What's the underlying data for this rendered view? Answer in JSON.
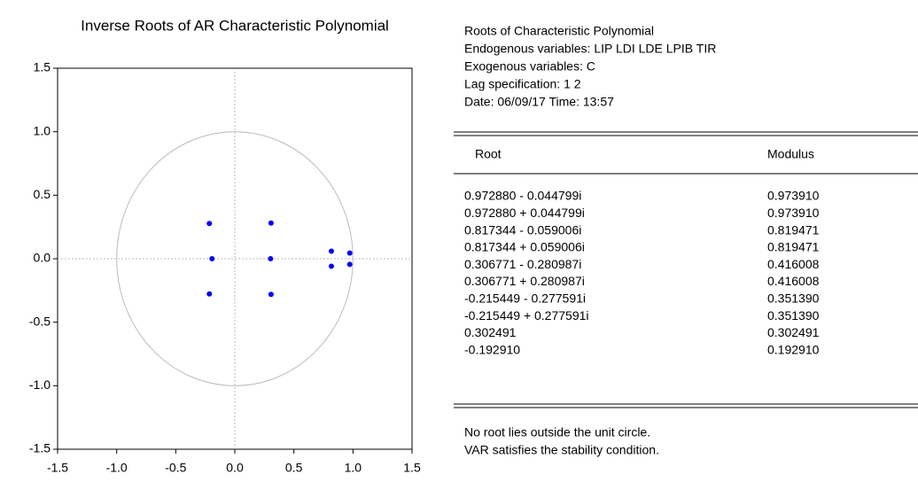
{
  "chart_data": {
    "type": "scatter",
    "title": "Inverse Roots of AR Characteristic Polynomial",
    "x": [
      0.97288,
      0.97288,
      0.817344,
      0.817344,
      0.306771,
      0.306771,
      -0.215449,
      -0.215449,
      0.302491,
      -0.19291
    ],
    "y": [
      -0.044799,
      0.044799,
      -0.059006,
      0.059006,
      -0.280987,
      0.280987,
      -0.277591,
      0.277591,
      0,
      0
    ],
    "color": "#0000ff",
    "xlim": [
      -1.5,
      1.5
    ],
    "ylim": [
      -1.5,
      1.5
    ],
    "xticks": [
      -1.5,
      {
        "value": -1,
        "label": "-1.0"
      },
      -0.5,
      {
        "value": 0,
        "label": "0.0"
      },
      0.5,
      {
        "value": 1,
        "label": "1.0"
      },
      1.5
    ],
    "yticks": [
      -1.5,
      {
        "value": -1,
        "label": "-1.0"
      },
      -0.5,
      {
        "value": 0,
        "label": "0.0"
      },
      0.5,
      {
        "value": 1,
        "label": "1.0"
      },
      1.5
    ]
  },
  "table": {
    "header": [
      "Roots of Characteristic Polynomial",
      "Endogenous variables: LIP LDI LDE LPIB TIR",
      "Exogenous variables: C",
      "Lag specification: 1 2",
      "Date: 06/09/17   Time: 13:57"
    ],
    "columns": [
      "Root",
      "Modulus"
    ],
    "rows": [
      [
        "0.972880 - 0.044799i",
        "0.973910"
      ],
      [
        "0.972880 + 0.044799i",
        "0.973910"
      ],
      [
        "0.817344 - 0.059006i",
        "0.819471"
      ],
      [
        "0.817344 + 0.059006i",
        "0.819471"
      ],
      [
        "0.306771 - 0.280987i",
        "0.416008"
      ],
      [
        "0.306771 + 0.280987i",
        "0.416008"
      ],
      [
        "-0.215449 - 0.277591i",
        "0.351390"
      ],
      [
        "-0.215449 + 0.277591i",
        "0.351390"
      ],
      [
        "0.302491",
        "0.302491"
      ],
      [
        "-0.192910",
        "0.192910"
      ]
    ],
    "footer": [
      "No root lies outside the unit circle.",
      "VAR satisfies the stability condition."
    ]
  }
}
